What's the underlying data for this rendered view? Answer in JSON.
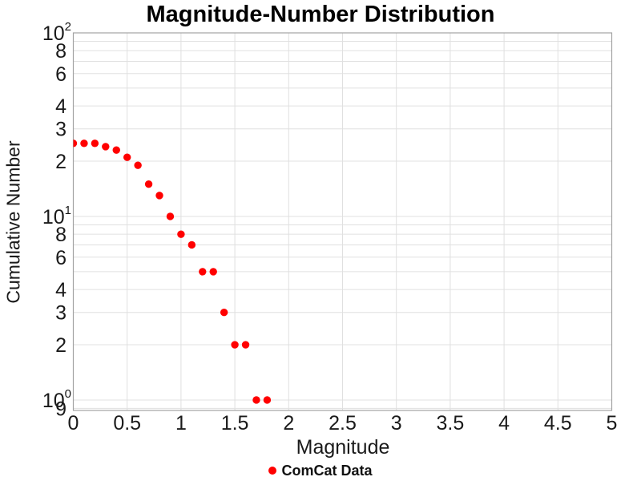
{
  "title": "Magnitude-Number Distribution",
  "axes": {
    "x_label": "Magnitude",
    "y_label": "Cumulative Number"
  },
  "legend": {
    "items": [
      {
        "label": "ComCat Data",
        "marker": "circle",
        "color": "#ff0000"
      }
    ]
  },
  "colors": {
    "marker": "#ff0000",
    "grid": "#e0e0e0",
    "axis_border": "#a3a3a3",
    "tick_text": "#1a1a1a",
    "title_text": "#000000",
    "background": "#ffffff"
  },
  "chart_data": {
    "type": "scatter",
    "title": "Magnitude-Number Distribution",
    "xlabel": "Magnitude",
    "ylabel": "Cumulative Number",
    "xscale": "linear",
    "yscale": "log",
    "xlim": [
      0,
      5
    ],
    "ylim": [
      0.877,
      100
    ],
    "grid": true,
    "legend_position": "bottom-center",
    "series": [
      {
        "name": "ComCat Data",
        "color": "#ff0000",
        "marker": "circle",
        "x": [
          0.0,
          0.1,
          0.2,
          0.3,
          0.4,
          0.5,
          0.6,
          0.7,
          0.8,
          0.9,
          1.0,
          1.1,
          1.2,
          1.3,
          1.4,
          1.5,
          1.6,
          1.7,
          1.8
        ],
        "y": [
          25,
          25,
          25,
          24,
          23,
          21,
          19,
          15,
          13,
          10,
          8,
          7,
          5,
          5,
          3,
          2,
          2,
          1,
          1
        ]
      }
    ],
    "x_ticks": [
      {
        "value": 0,
        "label": "0"
      },
      {
        "value": 0.5,
        "label": "0.5"
      },
      {
        "value": 1,
        "label": "1"
      },
      {
        "value": 1.5,
        "label": "1.5"
      },
      {
        "value": 2,
        "label": "2"
      },
      {
        "value": 2.5,
        "label": "2.5"
      },
      {
        "value": 3,
        "label": "3"
      },
      {
        "value": 3.5,
        "label": "3.5"
      },
      {
        "value": 4,
        "label": "4"
      },
      {
        "value": 4.5,
        "label": "4.5"
      },
      {
        "value": 5,
        "label": "5"
      }
    ],
    "y_ticks": [
      {
        "value": 100,
        "label": "10",
        "exponent": "2"
      },
      {
        "value": 80,
        "label": "8"
      },
      {
        "value": 60,
        "label": "6"
      },
      {
        "value": 40,
        "label": "4"
      },
      {
        "value": 30,
        "label": "3"
      },
      {
        "value": 20,
        "label": "2"
      },
      {
        "value": 10,
        "label": "10",
        "exponent": "1"
      },
      {
        "value": 8,
        "label": "8"
      },
      {
        "value": 6,
        "label": "6"
      },
      {
        "value": 4,
        "label": "4"
      },
      {
        "value": 3,
        "label": "3"
      },
      {
        "value": 2,
        "label": "2"
      },
      {
        "value": 1,
        "label": "10",
        "exponent": "0"
      },
      {
        "value": 0.9,
        "label": "9"
      }
    ],
    "x_gridlines": [
      0.5,
      1,
      1.5,
      2,
      2.5,
      3,
      3.5,
      4,
      4.5
    ],
    "y_gridlines": [
      0.9,
      1,
      2,
      3,
      4,
      5,
      6,
      7,
      8,
      9,
      10,
      20,
      30,
      40,
      50,
      60,
      70,
      80,
      90,
      100
    ]
  }
}
